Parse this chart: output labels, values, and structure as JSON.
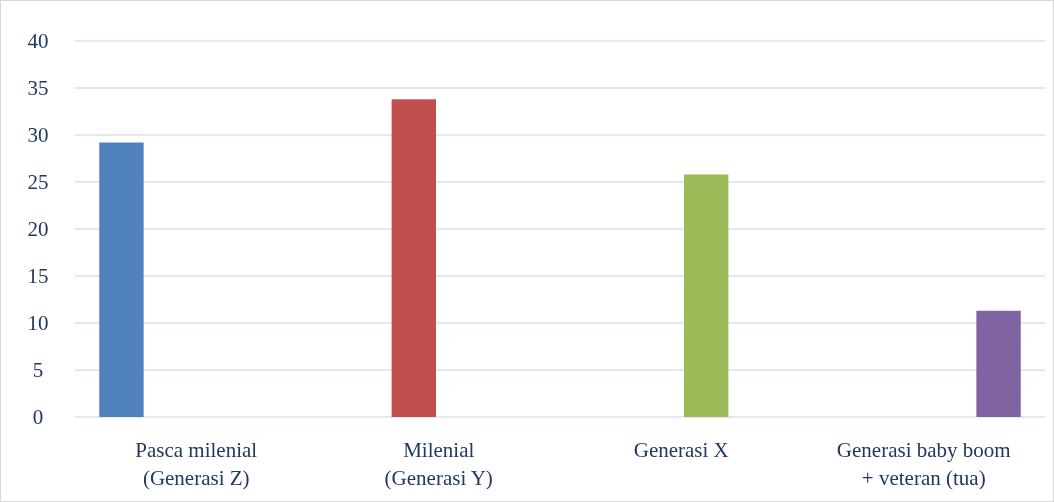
{
  "chart_data": {
    "type": "bar",
    "categories": [
      "Pasca milenial (Generasi Z)",
      "Milenial (Generasi Y)",
      "Generasi X",
      "Generasi baby boom + veteran (tua)"
    ],
    "series": [
      {
        "color": "#4f81bd",
        "values": [
          29.2,
          null,
          null,
          null
        ]
      },
      {
        "color": "#c0504d",
        "values": [
          null,
          33.8,
          null,
          null
        ]
      },
      {
        "color": "#9bbb59",
        "values": [
          null,
          null,
          25.8,
          null
        ]
      },
      {
        "color": "#8064a2",
        "values": [
          null,
          null,
          null,
          11.3
        ]
      }
    ],
    "ylim": [
      0,
      40
    ],
    "yticks": [
      0,
      5,
      10,
      15,
      20,
      25,
      30,
      35,
      40
    ],
    "grid": "y"
  }
}
